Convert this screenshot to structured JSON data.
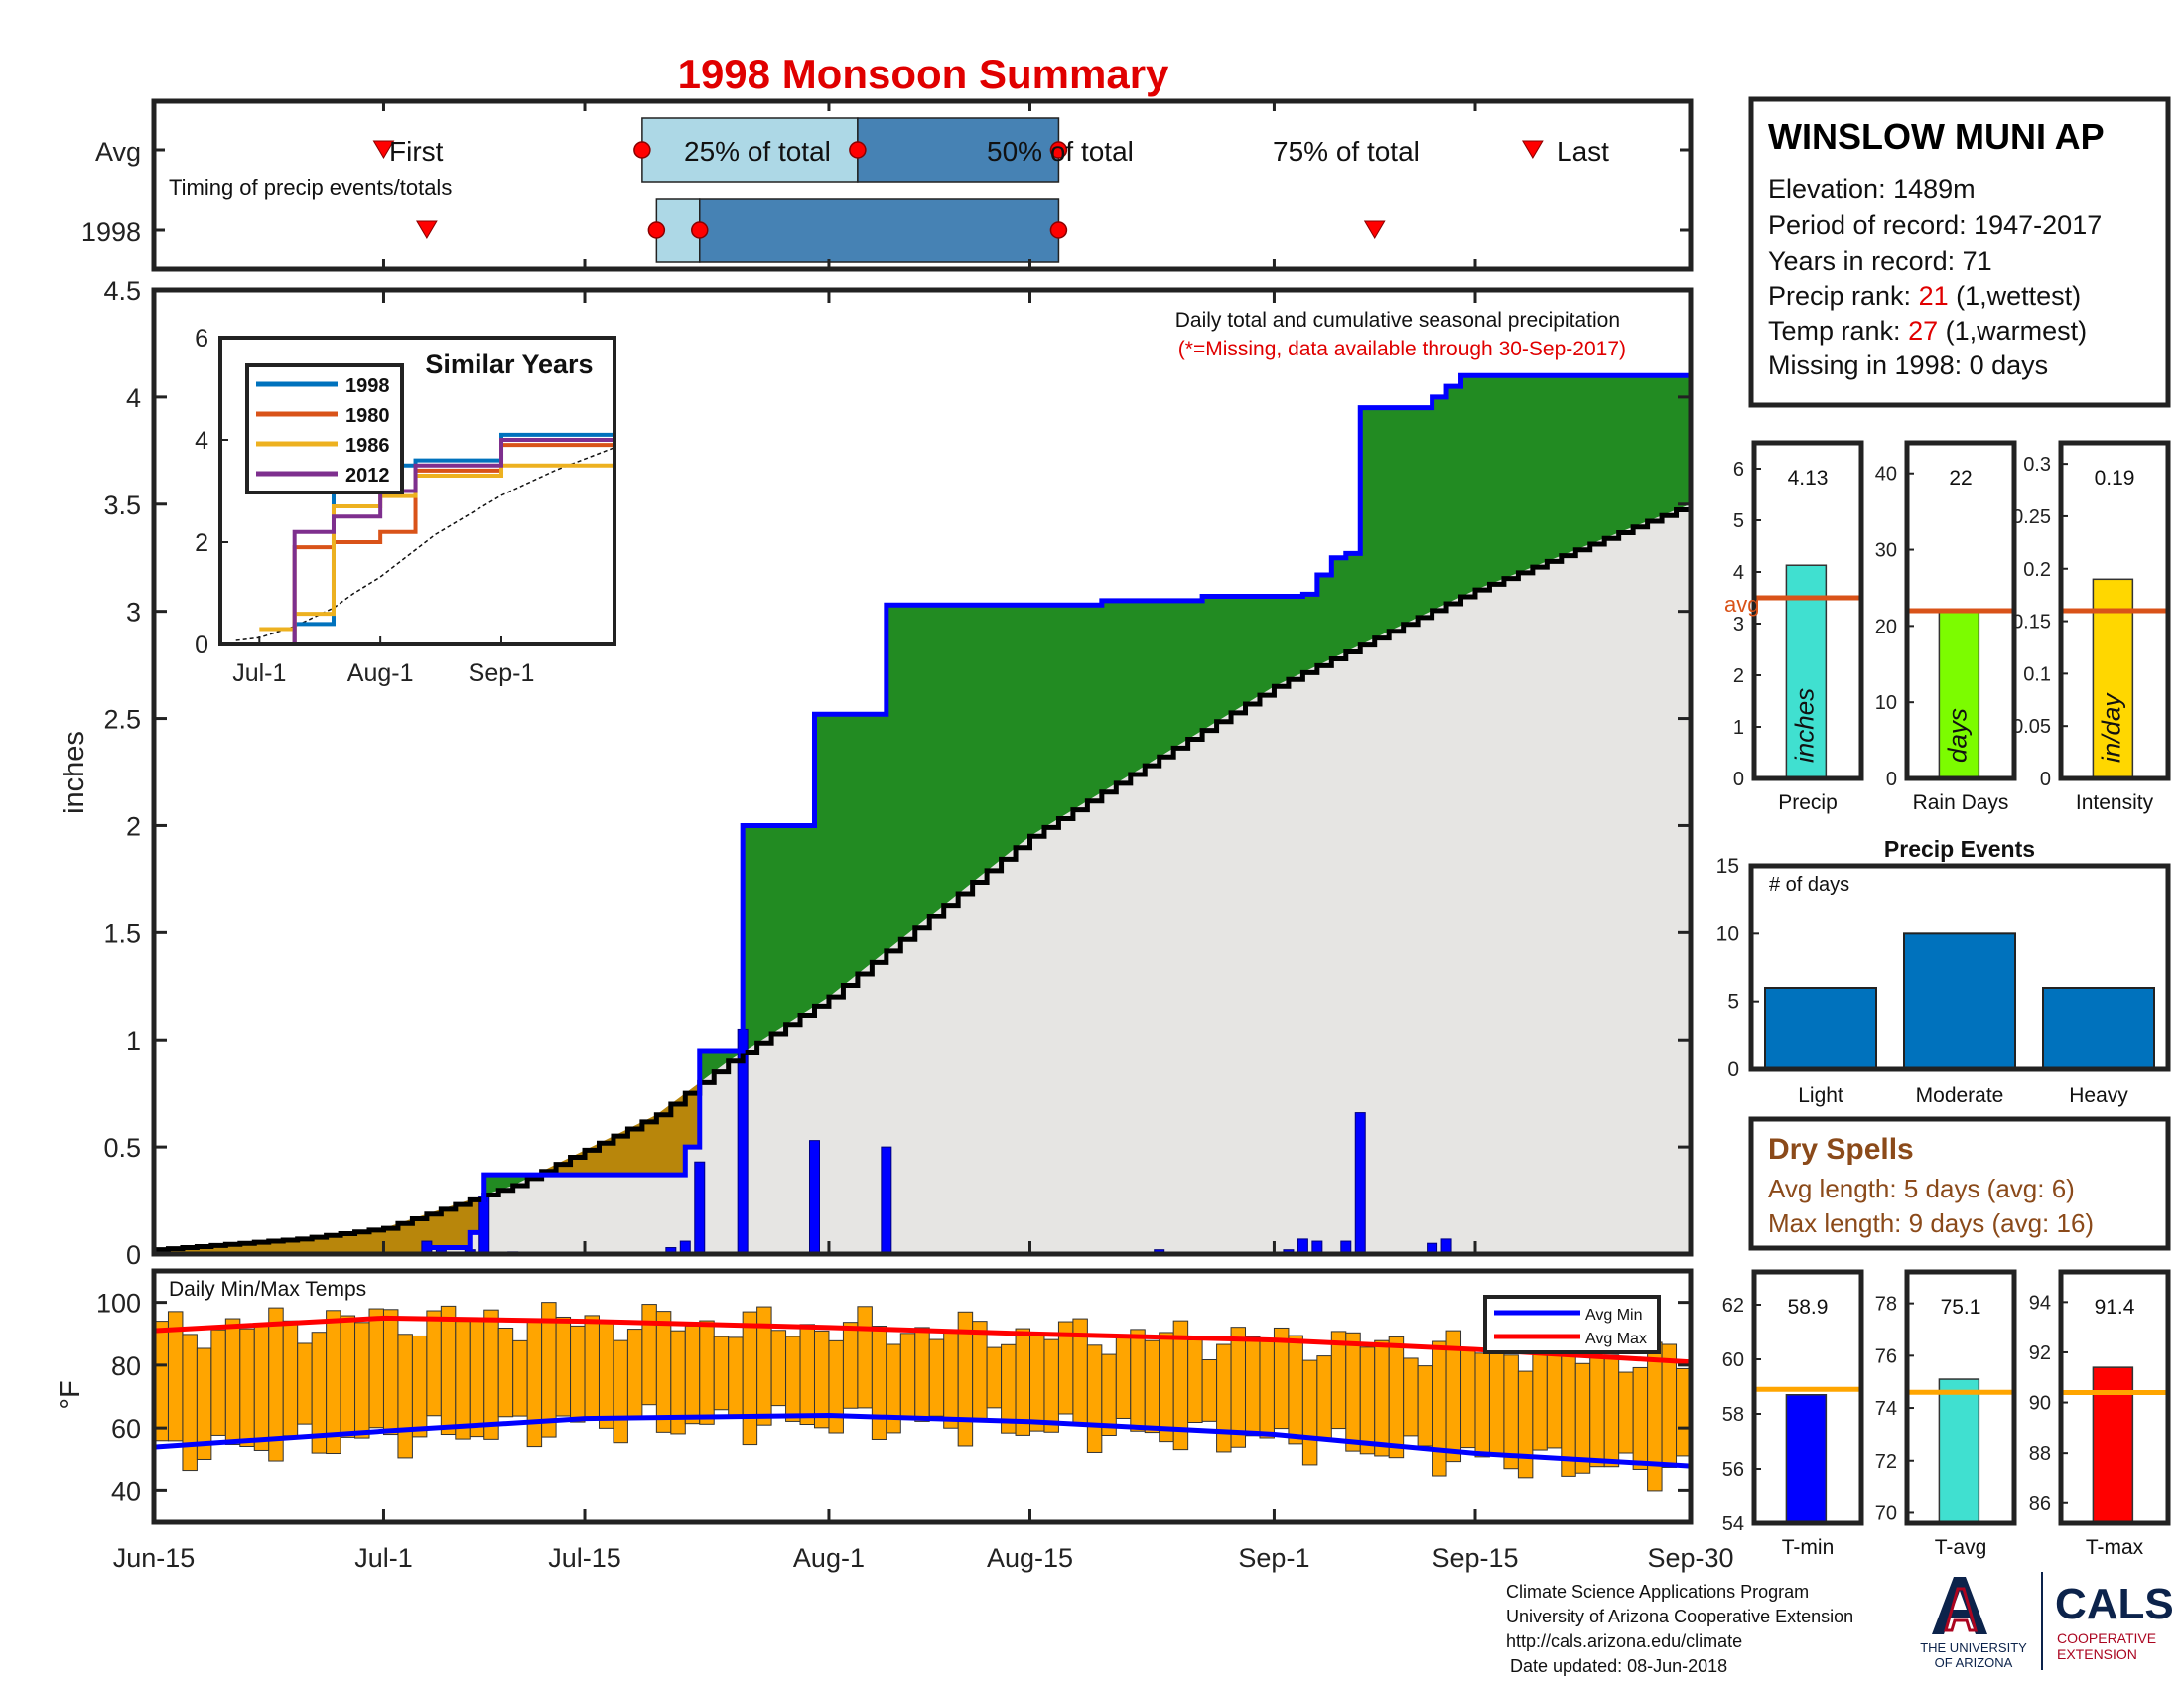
{
  "title": "1998 Monsoon Summary",
  "timing": {
    "row_labels": [
      "Avg",
      "1998"
    ],
    "caption": "Timing of precip events/totals",
    "first_label": "First",
    "last_label": "Last",
    "q25_label": "25% of total",
    "q50_label": "50% of total",
    "q75_label": "75% of total",
    "avg": {
      "first": "Jul-1",
      "q25": "Jul-19",
      "q50": "Aug-3",
      "q75": "Aug-17",
      "last": "Sep-19"
    },
    "year": {
      "first": "Jul-4",
      "q25": "Jul-20",
      "q50": "Jul-23",
      "q75": "Aug-17",
      "last": "Sep-8"
    },
    "colors": {
      "light": "#add8e6",
      "dark": "#4682b4",
      "marker": "#ff0000"
    }
  },
  "station": {
    "name": "WINSLOW MUNI AP",
    "elevation": "Elevation: 1489m",
    "period": "Period of record: 1947-2017",
    "years": "Years in record: 71",
    "precip_rank_prefix": "Precip rank: ",
    "precip_rank_value": "21",
    "precip_rank_suffix": " (1,wettest)",
    "temp_rank_prefix": "Temp rank: ",
    "temp_rank_value": "27",
    "temp_rank_suffix": " (1,warmest)",
    "missing": "Missing in 1998: 0 days"
  },
  "main_chart": {
    "note1": "Daily total and cumulative seasonal precipitation",
    "note2": "(*=Missing, data available through 30-Sep-2017)",
    "ylabel": "inches",
    "yticks": [
      "0",
      "0.5",
      "1",
      "1.5",
      "2",
      "2.5",
      "3",
      "3.5",
      "4",
      "4.5"
    ],
    "xticks": [
      "Jun-15",
      "Jul-1",
      "Jul-15",
      "Aug-1",
      "Aug-15",
      "Sep-1",
      "Sep-15",
      "Sep-30"
    ]
  },
  "temp_chart": {
    "label": "Daily Min/Max Temps",
    "ylabel": "°F",
    "yticks": [
      "40",
      "60",
      "80",
      "100"
    ],
    "legend_min": "Avg Min",
    "legend_max": "Avg Max"
  },
  "inset": {
    "title": "Similar Years",
    "yticks": [
      "0",
      "2",
      "4",
      "6"
    ],
    "xticks": [
      "Jul-1",
      "Aug-1",
      "Sep-1"
    ],
    "legend": [
      "1998",
      "1980",
      "1986",
      "2012"
    ],
    "colors": [
      "#0072bd",
      "#d95319",
      "#edb120",
      "#7e2f8e"
    ]
  },
  "stats": {
    "precip": {
      "label": "Precip",
      "value": "4.13",
      "unit": "inches",
      "avg_label": "avg",
      "yticks": [
        "0",
        "1",
        "2",
        "3",
        "4",
        "5",
        "6"
      ]
    },
    "rain_days": {
      "label": "Rain Days",
      "value": "22",
      "unit": "days",
      "yticks": [
        "0",
        "10",
        "20",
        "30",
        "40"
      ]
    },
    "intensity": {
      "label": "Intensity",
      "value": "0.19",
      "unit": "in/day",
      "yticks": [
        "0",
        "0.05",
        "0.1",
        "0.15",
        "0.2",
        "0.25",
        "0.3"
      ]
    }
  },
  "events": {
    "title": "Precip Events",
    "ylabel": "# of days",
    "yticks": [
      "0",
      "5",
      "10",
      "15"
    ]
  },
  "dry_spells": {
    "title": "Dry Spells",
    "avg": "Avg length: 5 days (avg: 6)",
    "max": "Max length: 9 days (avg: 16)"
  },
  "temps": {
    "tmin": {
      "label": "T-min",
      "value": "58.9",
      "yticks": [
        "54",
        "56",
        "58",
        "60",
        "62"
      ]
    },
    "tavg": {
      "label": "T-avg",
      "value": "75.1",
      "yticks": [
        "70",
        "72",
        "74",
        "76",
        "78"
      ]
    },
    "tmax": {
      "label": "T-max",
      "value": "91.4",
      "yticks": [
        "86",
        "88",
        "90",
        "92",
        "94"
      ]
    }
  },
  "footer": {
    "line1": "Climate Science Applications Program",
    "line2": "University of Arizona Cooperative Extension",
    "line3": "http://cals.arizona.edu/climate",
    "line4": "Date updated: 08-Jun-2018",
    "ua_line1": "THE UNIVERSITY",
    "ua_line2": "OF ARIZONA",
    "cals": "CALS",
    "cals_line1": "COOPERATIVE",
    "cals_line2": "EXTENSION"
  },
  "chart_data": [
    {
      "type": "area",
      "title": "Daily total and cumulative seasonal precipitation",
      "ylabel": "inches",
      "ylim": [
        0,
        4.5
      ],
      "x_range": [
        "Jun-15",
        "Sep-30"
      ],
      "series": [
        {
          "name": "1998",
          "points": [
            [
              "Jun-15",
              0
            ],
            [
              "Jul-4",
              0.03
            ],
            [
              "Jul-7",
              0.1
            ],
            [
              "Jul-8",
              0.37
            ],
            [
              "Jul-20",
              0.37
            ],
            [
              "Jul-22",
              0.5
            ],
            [
              "Jul-23",
              0.95
            ],
            [
              "Jul-25",
              0.95
            ],
            [
              "Jul-26",
              2.0
            ],
            [
              "Jul-30",
              2.0
            ],
            [
              "Jul-31",
              2.52
            ],
            [
              "Aug-4",
              2.52
            ],
            [
              "Aug-5",
              3.03
            ],
            [
              "Aug-10",
              3.03
            ],
            [
              "Aug-20",
              3.05
            ],
            [
              "Aug-27",
              3.07
            ],
            [
              "Sep-3",
              3.08
            ],
            [
              "Sep-4",
              3.17
            ],
            [
              "Sep-5",
              3.25
            ],
            [
              "Sep-6",
              3.27
            ],
            [
              "Sep-7",
              3.95
            ],
            [
              "Sep-12",
              4.0
            ],
            [
              "Sep-13",
              4.05
            ],
            [
              "Sep-14",
              4.1
            ],
            [
              "Sep-30",
              4.12
            ]
          ]
        },
        {
          "points": [
            [
              "Jun-15",
              0.02
            ],
            [
              "Jun-25",
              0.07
            ],
            [
              "Jul-1",
              0.12
            ],
            [
              "Jul-10",
              0.32
            ],
            [
              "Jul-20",
              0.65
            ],
            [
              "Jul-25",
              0.9
            ],
            [
              "Aug-1",
              1.2
            ],
            [
              "Aug-15",
              1.95
            ],
            [
              "Sep-1",
              2.65
            ],
            [
              "Sep-15",
              3.1
            ],
            [
              "Sep-30",
              3.5
            ]
          ]
        }
      ],
      "daily_precip": [
        [
          "Jul-4",
          0.06
        ],
        [
          "Jul-5",
          0.02
        ],
        [
          "Jul-7",
          0.02
        ],
        [
          "Jul-8",
          0.27
        ],
        [
          "Jul-10",
          0.01
        ],
        [
          "Jul-21",
          0.03
        ],
        [
          "Jul-22",
          0.06
        ],
        [
          "Jul-23",
          0.43
        ],
        [
          "Jul-26",
          1.05
        ],
        [
          "Jul-31",
          0.53
        ],
        [
          "Aug-5",
          0.5
        ],
        [
          "Aug-24",
          0.02
        ],
        [
          "Sep-2",
          0.02
        ],
        [
          "Sep-3",
          0.07
        ],
        [
          "Sep-4",
          0.06
        ],
        [
          "Sep-6",
          0.06
        ],
        [
          "Sep-7",
          0.66
        ],
        [
          "Sep-12",
          0.05
        ],
        [
          "Sep-13",
          0.07
        ]
      ]
    },
    {
      "type": "bar",
      "title": "Daily Min/Max Temps",
      "ylabel": "°F",
      "ylim": [
        30,
        110
      ],
      "series": [
        {
          "name": "Avg Min",
          "points": [
            [
              "Jun-15",
              54
            ],
            [
              "Jul-1",
              59
            ],
            [
              "Jul-15",
              63
            ],
            [
              "Aug-1",
              64
            ],
            [
              "Aug-15",
              62
            ],
            [
              "Sep-1",
              58
            ],
            [
              "Sep-15",
              52
            ],
            [
              "Sep-30",
              48
            ]
          ]
        },
        {
          "name": "Avg Max",
          "points": [
            [
              "Jun-15",
              91
            ],
            [
              "Jul-1",
              95
            ],
            [
              "Jul-15",
              94
            ],
            [
              "Aug-1",
              92
            ],
            [
              "Aug-15",
              90
            ],
            [
              "Sep-1",
              88
            ],
            [
              "Sep-15",
              85
            ],
            [
              "Sep-30",
              81
            ]
          ]
        }
      ]
    },
    {
      "type": "line",
      "title": "Similar Years",
      "ylim": [
        0,
        6
      ],
      "series": [
        {
          "name": "1998",
          "points": [
            [
              "Jul-1",
              0
            ],
            [
              "Jul-10",
              0.4
            ],
            [
              "Jul-20",
              3.5
            ],
            [
              "Aug-1",
              3.5
            ],
            [
              "Aug-10",
              3.6
            ],
            [
              "Sep-1",
              4.1
            ],
            [
              "Sep-30",
              4.1
            ]
          ]
        },
        {
          "name": "1980",
          "points": [
            [
              "Jul-1",
              0
            ],
            [
              "Jul-10",
              1.9
            ],
            [
              "Jul-20",
              2.0
            ],
            [
              "Aug-1",
              2.2
            ],
            [
              "Aug-10",
              3.4
            ],
            [
              "Sep-1",
              3.9
            ],
            [
              "Sep-30",
              3.9
            ]
          ]
        },
        {
          "name": "1986",
          "points": [
            [
              "Jul-1",
              0.3
            ],
            [
              "Jul-10",
              0.6
            ],
            [
              "Jul-20",
              2.7
            ],
            [
              "Aug-1",
              2.9
            ],
            [
              "Aug-10",
              3.3
            ],
            [
              "Sep-1",
              3.5
            ],
            [
              "Sep-30",
              3.6
            ]
          ]
        },
        {
          "name": "2012",
          "points": [
            [
              "Jul-1",
              0
            ],
            [
              "Jul-10",
              2.2
            ],
            [
              "Jul-20",
              2.5
            ],
            [
              "Aug-1",
              3.0
            ],
            [
              "Aug-10",
              3.5
            ],
            [
              "Sep-1",
              4.0
            ],
            [
              "Sep-30",
              4.0
            ]
          ]
        }
      ]
    },
    {
      "type": "bar",
      "title": "Precip Events",
      "ylabel": "# of days",
      "categories": [
        "Light",
        "Moderate",
        "Heavy"
      ],
      "values": [
        6,
        10,
        6
      ],
      "ylim": [
        0,
        15
      ]
    },
    {
      "type": "bar",
      "categories": [
        "Precip",
        "Rain Days",
        "Intensity"
      ],
      "values": [
        4.13,
        22,
        0.19
      ],
      "averages": [
        3.5,
        22,
        0.16
      ]
    },
    {
      "type": "bar",
      "categories": [
        "T-min",
        "T-avg",
        "T-max"
      ],
      "values": [
        58.9,
        75.1,
        91.4
      ],
      "averages": [
        58.8,
        74.6,
        90.4
      ]
    }
  ]
}
